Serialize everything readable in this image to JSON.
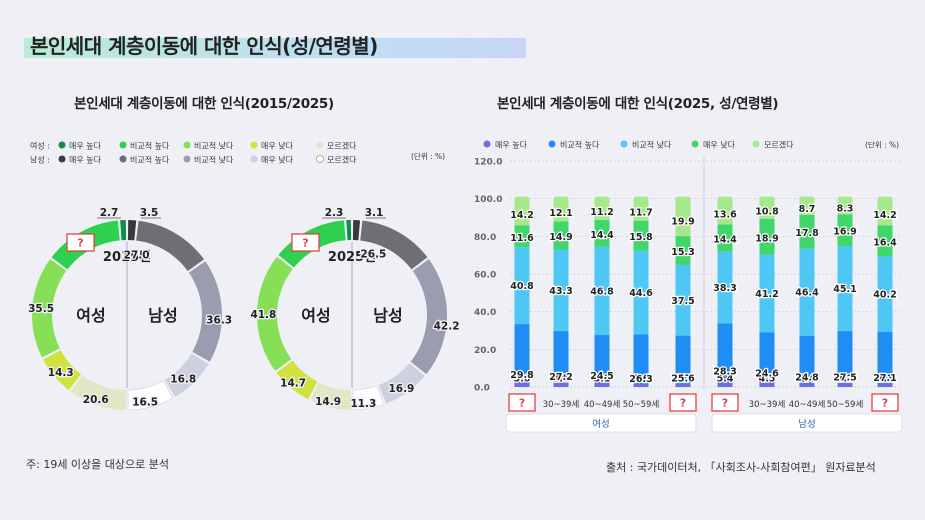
{
  "page": {
    "title": "본인세대 계층이동에 대한 인식(성/연령별)",
    "footnote": "주: 19세 이상을 대상으로 분석",
    "source": "출처 : 국가데이터처, 「사회조사-사회참여편」 원자료분석"
  },
  "chart_data": [
    {
      "type": "donut",
      "title": "본인세대 계층이동에 대한 인식(2015/2025)",
      "unit": "(단위 : %)",
      "legend_labels": [
        "매우 높다",
        "비교적 높다",
        "비교적 낮다",
        "매우 낮다",
        "모르겠다"
      ],
      "legend_groups": [
        "여성 :",
        "남성 :"
      ],
      "colors": {
        "여성": [
          "#0c8f4b",
          "#2fcf50",
          "#86df55",
          "#d2e23c",
          "#e1e6c4"
        ],
        "남성": [
          "#3a3a3e",
          "#6e6e74",
          "#9c9cb0",
          "#cfd0de",
          "#ffffff"
        ]
      },
      "rings": [
        {
          "year_label": "2015년",
          "female_label": "여성",
          "male_label": "남성",
          "female": {
            "매우 높다": 2.7,
            "비교적 높다": null,
            "비교적 낮다": 35.5,
            "매우 낮다": 14.3,
            "모르겠다": 20.6
          },
          "male": {
            "매우 높다": 3.5,
            "비교적 높다": 27.0,
            "비교적 낮다": 36.3,
            "매우 낮다": 16.8,
            "모르겠다": 16.5
          },
          "labels": {
            "female": [
              "2.7",
              "?",
              "35.5",
              "14.3",
              "20.6"
            ],
            "male": [
              "3.5",
              "27.0",
              "36.3",
              "16.8",
              "16.5"
            ]
          }
        },
        {
          "year_label": "2025년",
          "female_label": "여성",
          "male_label": "남성",
          "female": {
            "매우 높다": 2.3,
            "비교적 높다": null,
            "비교적 낮다": 41.8,
            "매우 낮다": 14.7,
            "모르겠다": 14.9
          },
          "male": {
            "매우 높다": 3.1,
            "비교적 높다": 26.5,
            "비교적 낮다": 42.2,
            "매우 낮다": 16.9,
            "모르겠다": 11.3
          },
          "labels": {
            "female": [
              "2.3",
              "?",
              "41.8",
              "14.7",
              "14.9"
            ],
            "male": [
              "3.1",
              "26.5",
              "42.2",
              "16.9",
              "11.3"
            ]
          }
        }
      ]
    },
    {
      "type": "stacked_bar",
      "title": "본인세대 계층이동에 대한 인식(2025, 성/연령별)",
      "unit": "(단위 : %)",
      "ylim": [
        0,
        120
      ],
      "yticks": [
        "0.0",
        "20.0",
        "40.0",
        "60.0",
        "80.0",
        "100.0",
        "120.0"
      ],
      "legend": [
        "매우 높다",
        "비교적 높다",
        "비교적 낮다",
        "매우 낮다",
        "모르겠다"
      ],
      "colors": [
        "#6b6fe0",
        "#1f8df5",
        "#4fc7f5",
        "#3fd66a",
        "#a7e98a"
      ],
      "categories": [
        "?",
        "30~39세",
        "40~49세",
        "50~59세",
        "?",
        "?",
        "30~39세",
        "40~49세",
        "50~59세",
        "?"
      ],
      "groups": [
        "여성",
        "남성"
      ],
      "series": [
        {
          "name": "매우 높다",
          "values": [
            3.6,
            2.5,
            3.1,
            1.6,
            1.7,
            5.4,
            4.5,
            2.4,
            2.2,
            2.1
          ]
        },
        {
          "name": "비교적 높다",
          "values": [
            29.8,
            27.2,
            24.5,
            26.3,
            25.6,
            28.3,
            24.6,
            24.8,
            27.5,
            27.1
          ]
        },
        {
          "name": "비교적 낮다",
          "values": [
            40.8,
            43.3,
            46.8,
            44.6,
            37.5,
            38.3,
            41.2,
            46.4,
            45.1,
            40.2
          ]
        },
        {
          "name": "매우 낮다",
          "values": [
            11.6,
            14.9,
            14.4,
            15.8,
            15.3,
            14.4,
            18.9,
            17.8,
            16.9,
            16.4
          ]
        },
        {
          "name": "모르겠다",
          "values": [
            14.2,
            12.1,
            11.2,
            11.7,
            19.9,
            13.6,
            10.8,
            8.7,
            8.3,
            14.2
          ]
        }
      ],
      "value_labels": [
        [
          "3.6",
          "2.5",
          "3.1",
          "1.6",
          "1.7",
          "5.4",
          "4.5",
          "2.4",
          "2.2",
          "2.1"
        ],
        [
          "29.8",
          "27.2",
          "24.5",
          "26.3",
          "25.6",
          "28.3",
          "24.6",
          "24.8",
          "27.5",
          "27.1"
        ],
        [
          "40.8",
          "43.3",
          "46.8",
          "44.6",
          "37.5",
          "38.3",
          "41.2",
          "46.4",
          "45.1",
          "40.2"
        ],
        [
          "11.6",
          "14.9",
          "14.4",
          "15.8",
          "15.3",
          "14.4",
          "18.9",
          "17.8",
          "16.9",
          "16.4"
        ],
        [
          "14.2",
          "12.1",
          "11.2",
          "11.7",
          "19.9",
          "13.6",
          "10.8",
          "8.7",
          "8.3",
          "14.2"
        ]
      ]
    }
  ]
}
